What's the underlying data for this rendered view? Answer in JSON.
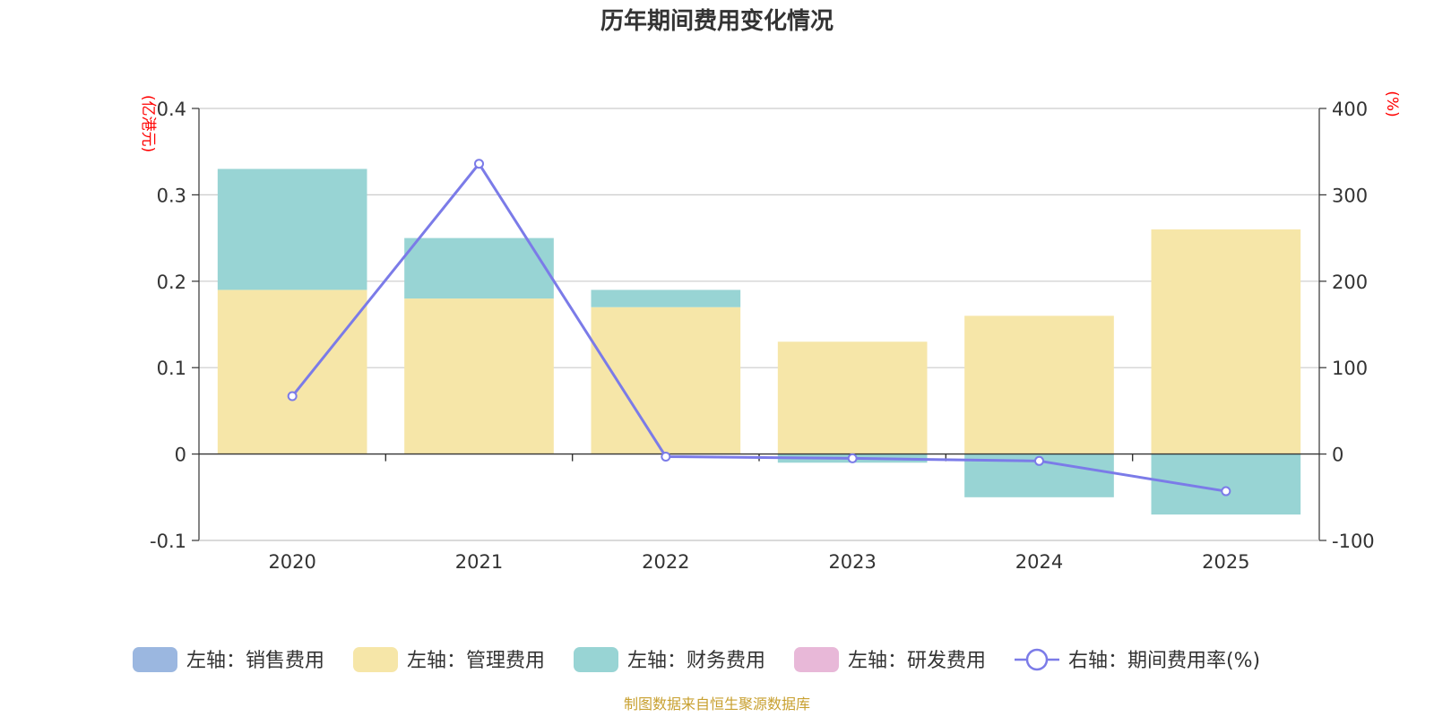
{
  "chart_data": {
    "type": "bar",
    "title": "历年期间费用变化情况",
    "categories": [
      "2020",
      "2021",
      "2022",
      "2023",
      "2024",
      "2025"
    ],
    "left_axis": {
      "unit": "(亿港元)",
      "ylim": [
        -0.1,
        0.4
      ],
      "ticks": [
        0.4,
        0.3,
        0.2,
        0.1,
        0,
        -0.1
      ],
      "tick_labels": [
        "0.4",
        "0.3",
        "0.2",
        "0.1",
        "0",
        "-0.1"
      ]
    },
    "right_axis": {
      "unit": "(%)",
      "ylim": [
        -100,
        400
      ],
      "ticks": [
        400,
        300,
        200,
        100,
        0,
        -100
      ],
      "tick_labels": [
        "400",
        "300",
        "200",
        "100",
        "0",
        "-100"
      ]
    },
    "series": [
      {
        "name": "左轴：销售费用",
        "kind": "bar",
        "axis": "left",
        "color": "#9bb7e0",
        "values": [
          0,
          0,
          0,
          0,
          0,
          0
        ]
      },
      {
        "name": "左轴：管理费用",
        "kind": "bar",
        "axis": "left",
        "color": "#f6e6a8",
        "values": [
          0.19,
          0.18,
          0.17,
          0.13,
          0.16,
          0.26
        ]
      },
      {
        "name": "左轴：财务费用",
        "kind": "bar",
        "axis": "left",
        "color": "#98d4d4",
        "values": [
          0.14,
          0.07,
          0.02,
          -0.01,
          -0.05,
          -0.07
        ]
      },
      {
        "name": "左轴：研发费用",
        "kind": "bar",
        "axis": "left",
        "color": "#e8b8d8",
        "values": [
          0,
          0,
          0,
          0,
          0,
          0
        ]
      },
      {
        "name": "右轴：期间费用率(%)",
        "kind": "line",
        "axis": "right",
        "color": "#7b7be8",
        "values": [
          67,
          336,
          -3,
          -5,
          -8,
          -43
        ]
      }
    ],
    "source_note": "制图数据来自恒生聚源数据库"
  }
}
